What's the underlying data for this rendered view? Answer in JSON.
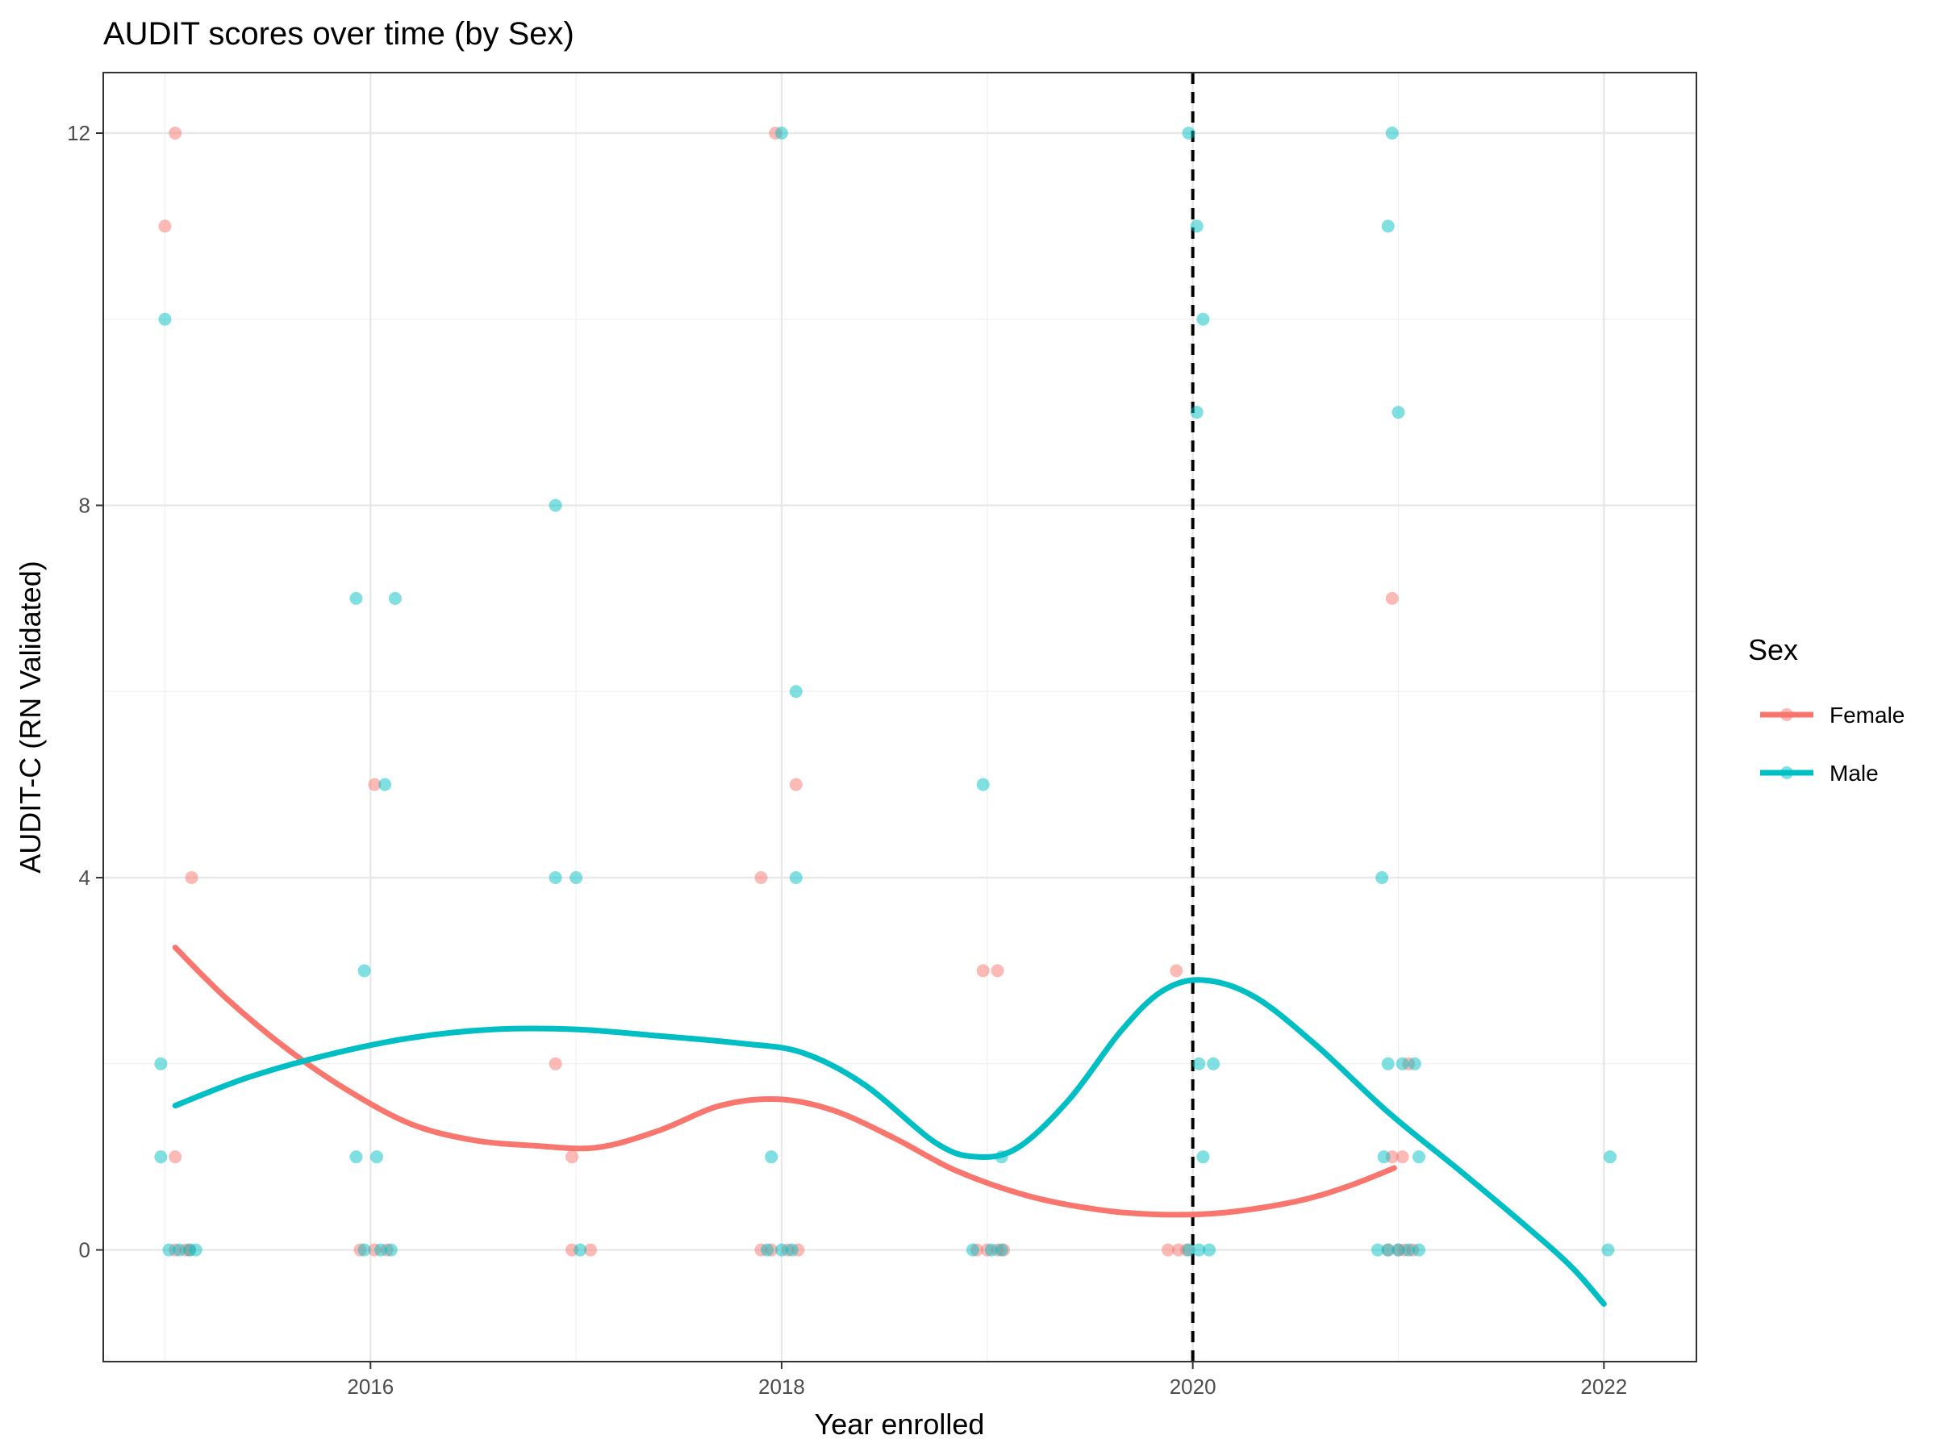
{
  "chart_data": {
    "type": "scatter",
    "title": "AUDIT scores over time (by Sex)",
    "xlabel": "Year enrolled",
    "ylabel": "AUDIT-C (RN Validated)",
    "xlim": [
      2014.7,
      2022.45
    ],
    "ylim": [
      -1.2,
      12.65
    ],
    "x_ticks": [
      {
        "value": 2016,
        "label": "2016"
      },
      {
        "value": 2018,
        "label": "2018"
      },
      {
        "value": 2020,
        "label": "2020"
      },
      {
        "value": 2022,
        "label": "2022"
      }
    ],
    "y_ticks": [
      {
        "value": 0,
        "label": "0"
      },
      {
        "value": 4,
        "label": "4"
      },
      {
        "value": 8,
        "label": "8"
      },
      {
        "value": 12,
        "label": "12"
      }
    ],
    "grid": true,
    "reference_line": {
      "x": 2020,
      "style": "dashed",
      "color": "#000000"
    },
    "legend": {
      "title": "Sex",
      "position": "right",
      "entries": [
        {
          "name": "Female",
          "color": "#F8766D"
        },
        {
          "name": "Male",
          "color": "#00BFC4"
        }
      ]
    },
    "series": [
      {
        "name": "Female",
        "color": "#F8766D",
        "points": [
          [
            2015.05,
            12
          ],
          [
            2015.0,
            11
          ],
          [
            2015.05,
            1
          ],
          [
            2015.13,
            4
          ],
          [
            2015.05,
            0
          ],
          [
            2015.1,
            0
          ],
          [
            2015.12,
            0
          ],
          [
            2016.02,
            5
          ],
          [
            2015.95,
            0
          ],
          [
            2016.02,
            0
          ],
          [
            2016.08,
            0
          ],
          [
            2016.9,
            2
          ],
          [
            2016.98,
            1
          ],
          [
            2016.98,
            0
          ],
          [
            2017.07,
            0
          ],
          [
            2017.97,
            12
          ],
          [
            2017.9,
            4
          ],
          [
            2018.07,
            5
          ],
          [
            2017.9,
            0
          ],
          [
            2017.95,
            0
          ],
          [
            2018.03,
            0
          ],
          [
            2018.08,
            0
          ],
          [
            2018.98,
            3
          ],
          [
            2019.05,
            3
          ],
          [
            2018.95,
            0
          ],
          [
            2019.0,
            0
          ],
          [
            2019.05,
            0
          ],
          [
            2019.08,
            0
          ],
          [
            2019.92,
            3
          ],
          [
            2019.88,
            0
          ],
          [
            2019.93,
            0
          ],
          [
            2019.97,
            0
          ],
          [
            2020.97,
            7
          ],
          [
            2021.05,
            2
          ],
          [
            2020.97,
            1
          ],
          [
            2021.02,
            1
          ],
          [
            2020.95,
            0
          ],
          [
            2021.0,
            0
          ],
          [
            2021.03,
            0
          ],
          [
            2021.07,
            0
          ]
        ],
        "smooth": [
          [
            2015.05,
            3.25
          ],
          [
            2015.3,
            2.7
          ],
          [
            2015.6,
            2.15
          ],
          [
            2015.9,
            1.7
          ],
          [
            2016.2,
            1.35
          ],
          [
            2016.5,
            1.18
          ],
          [
            2016.8,
            1.12
          ],
          [
            2017.1,
            1.1
          ],
          [
            2017.4,
            1.28
          ],
          [
            2017.7,
            1.55
          ],
          [
            2017.98,
            1.62
          ],
          [
            2018.25,
            1.5
          ],
          [
            2018.55,
            1.2
          ],
          [
            2018.85,
            0.85
          ],
          [
            2019.2,
            0.58
          ],
          [
            2019.55,
            0.43
          ],
          [
            2019.85,
            0.38
          ],
          [
            2020.15,
            0.4
          ],
          [
            2020.5,
            0.52
          ],
          [
            2020.75,
            0.68
          ],
          [
            2020.98,
            0.88
          ]
        ]
      },
      {
        "name": "Male",
        "color": "#00BFC4",
        "points": [
          [
            2015.0,
            10
          ],
          [
            2014.98,
            2
          ],
          [
            2014.98,
            1
          ],
          [
            2015.02,
            0
          ],
          [
            2015.07,
            0
          ],
          [
            2015.12,
            0
          ],
          [
            2015.15,
            0
          ],
          [
            2015.93,
            7
          ],
          [
            2016.12,
            7
          ],
          [
            2015.97,
            3
          ],
          [
            2016.07,
            5
          ],
          [
            2015.93,
            1
          ],
          [
            2016.03,
            1
          ],
          [
            2015.97,
            0
          ],
          [
            2016.05,
            0
          ],
          [
            2016.1,
            0
          ],
          [
            2016.9,
            8
          ],
          [
            2016.9,
            4
          ],
          [
            2017.0,
            4
          ],
          [
            2017.02,
            0
          ],
          [
            2018.0,
            12
          ],
          [
            2018.07,
            6
          ],
          [
            2018.07,
            4
          ],
          [
            2017.95,
            1
          ],
          [
            2017.93,
            0
          ],
          [
            2018.0,
            0
          ],
          [
            2018.05,
            0
          ],
          [
            2018.98,
            5
          ],
          [
            2019.07,
            1
          ],
          [
            2018.93,
            0
          ],
          [
            2019.02,
            0
          ],
          [
            2019.07,
            0
          ],
          [
            2019.98,
            12
          ],
          [
            2020.02,
            11
          ],
          [
            2020.05,
            10
          ],
          [
            2020.02,
            9
          ],
          [
            2020.03,
            2
          ],
          [
            2020.1,
            2
          ],
          [
            2020.05,
            1
          ],
          [
            2019.98,
            0
          ],
          [
            2020.03,
            0
          ],
          [
            2020.08,
            0
          ],
          [
            2020.97,
            12
          ],
          [
            2020.95,
            11
          ],
          [
            2021.0,
            9
          ],
          [
            2020.92,
            4
          ],
          [
            2020.95,
            2
          ],
          [
            2021.02,
            2
          ],
          [
            2021.08,
            2
          ],
          [
            2020.93,
            1
          ],
          [
            2021.1,
            1
          ],
          [
            2020.9,
            0
          ],
          [
            2020.95,
            0
          ],
          [
            2021.0,
            0
          ],
          [
            2021.05,
            0
          ],
          [
            2021.1,
            0
          ],
          [
            2022.03,
            1
          ],
          [
            2022.02,
            0
          ]
        ],
        "smooth": [
          [
            2015.05,
            1.55
          ],
          [
            2015.4,
            1.85
          ],
          [
            2015.8,
            2.1
          ],
          [
            2016.2,
            2.28
          ],
          [
            2016.6,
            2.37
          ],
          [
            2017.0,
            2.37
          ],
          [
            2017.4,
            2.3
          ],
          [
            2017.8,
            2.22
          ],
          [
            2018.1,
            2.12
          ],
          [
            2018.4,
            1.78
          ],
          [
            2018.75,
            1.15
          ],
          [
            2018.95,
            1.0
          ],
          [
            2019.15,
            1.1
          ],
          [
            2019.4,
            1.62
          ],
          [
            2019.65,
            2.35
          ],
          [
            2019.85,
            2.78
          ],
          [
            2020.05,
            2.9
          ],
          [
            2020.3,
            2.72
          ],
          [
            2020.6,
            2.2
          ],
          [
            2020.95,
            1.48
          ],
          [
            2021.3,
            0.85
          ],
          [
            2021.65,
            0.2
          ],
          [
            2021.85,
            -0.2
          ],
          [
            2022.0,
            -0.58
          ]
        ]
      }
    ]
  }
}
